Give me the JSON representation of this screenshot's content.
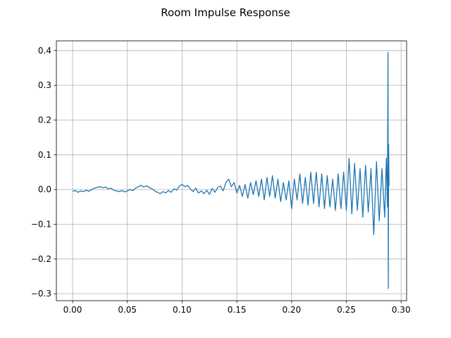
{
  "chart_data": {
    "type": "line",
    "title": "Room Impulse Response",
    "grid": true,
    "xlim": [
      -0.0148,
      0.305
    ],
    "ylim": [
      -0.32,
      0.428
    ],
    "xticks": [
      {
        "value": 0,
        "label": "0.00"
      },
      {
        "value": 0.05,
        "label": "0.05"
      },
      {
        "value": 0.1,
        "label": "0.10"
      },
      {
        "value": 0.15,
        "label": "0.15"
      },
      {
        "value": 0.2,
        "label": "0.20"
      },
      {
        "value": 0.25,
        "label": "0.25"
      },
      {
        "value": 0.3,
        "label": "0.30"
      }
    ],
    "yticks": [
      {
        "value": -0.3,
        "label": "−0.3"
      },
      {
        "value": -0.2,
        "label": "−0.2"
      },
      {
        "value": -0.1,
        "label": "−0.1"
      },
      {
        "value": 0,
        "label": "0.0"
      },
      {
        "value": 0.1,
        "label": "0.1"
      },
      {
        "value": 0.2,
        "label": "0.2"
      },
      {
        "value": 0.3,
        "label": "0.3"
      },
      {
        "value": 0.4,
        "label": "0.4"
      }
    ],
    "x": [
      0,
      0.0025,
      0.005,
      0.0075,
      0.01,
      0.0125,
      0.015,
      0.0175,
      0.02,
      0.0225,
      0.025,
      0.0275,
      0.03,
      0.0325,
      0.035,
      0.0375,
      0.04,
      0.0425,
      0.045,
      0.0475,
      0.05,
      0.0525,
      0.055,
      0.0575,
      0.06,
      0.0625,
      0.065,
      0.0675,
      0.07,
      0.0725,
      0.075,
      0.0775,
      0.08,
      0.0825,
      0.085,
      0.0875,
      0.09,
      0.0925,
      0.095,
      0.0975,
      0.1,
      0.1025,
      0.105,
      0.1075,
      0.11,
      0.1125,
      0.115,
      0.1175,
      0.12,
      0.1225,
      0.125,
      0.1275,
      0.13,
      0.1325,
      0.135,
      0.1375,
      0.14,
      0.1425,
      0.145,
      0.1475,
      0.15,
      0.1525,
      0.155,
      0.1575,
      0.16,
      0.1625,
      0.165,
      0.1675,
      0.17,
      0.1725,
      0.175,
      0.1775,
      0.18,
      0.1825,
      0.185,
      0.1875,
      0.19,
      0.1925,
      0.195,
      0.1975,
      0.2,
      0.2025,
      0.205,
      0.2075,
      0.21,
      0.2125,
      0.215,
      0.2175,
      0.22,
      0.2225,
      0.225,
      0.2275,
      0.23,
      0.2325,
      0.235,
      0.2375,
      0.24,
      0.2425,
      0.245,
      0.2475,
      0.25,
      0.2525,
      0.255,
      0.2575,
      0.26,
      0.2625,
      0.265,
      0.2675,
      0.27,
      0.2725,
      0.275,
      0.2775,
      0.28,
      0.2825,
      0.285,
      0.2865,
      0.2875,
      0.288,
      0.2883,
      0.2886,
      0.289
    ],
    "series": [
      {
        "color": "#1f77b4",
        "values": [
          -0.005,
          -0.003,
          -0.008,
          -0.004,
          -0.006,
          -0.002,
          -0.005,
          0.0,
          0.004,
          0.006,
          0.008,
          0.005,
          0.007,
          0.002,
          0.004,
          -0.002,
          -0.004,
          -0.006,
          -0.003,
          -0.007,
          -0.004,
          0.0,
          -0.003,
          0.004,
          0.008,
          0.012,
          0.007,
          0.011,
          0.006,
          0.002,
          -0.004,
          -0.008,
          -0.012,
          -0.006,
          -0.01,
          -0.003,
          -0.008,
          0.002,
          -0.002,
          0.01,
          0.015,
          0.008,
          0.012,
          0.002,
          -0.006,
          0.004,
          -0.01,
          -0.004,
          -0.012,
          -0.002,
          -0.014,
          0.003,
          -0.008,
          0.006,
          0.01,
          -0.004,
          0.02,
          0.03,
          0.008,
          0.02,
          -0.01,
          0.012,
          -0.02,
          0.015,
          -0.025,
          0.02,
          -0.015,
          0.025,
          -0.02,
          0.03,
          -0.03,
          0.035,
          -0.02,
          0.04,
          -0.025,
          0.03,
          -0.035,
          0.02,
          -0.03,
          0.025,
          -0.055,
          0.03,
          -0.03,
          0.045,
          -0.04,
          0.035,
          -0.045,
          0.05,
          -0.04,
          0.05,
          -0.05,
          0.045,
          -0.055,
          0.04,
          -0.05,
          0.03,
          -0.06,
          0.045,
          -0.055,
          0.05,
          -0.06,
          0.09,
          -0.07,
          0.075,
          -0.06,
          0.06,
          -0.08,
          0.07,
          -0.065,
          0.06,
          -0.13,
          0.08,
          -0.09,
          0.06,
          -0.08,
          0.09,
          -0.05,
          0.395,
          -0.285,
          0.13,
          0.01
        ]
      }
    ]
  }
}
